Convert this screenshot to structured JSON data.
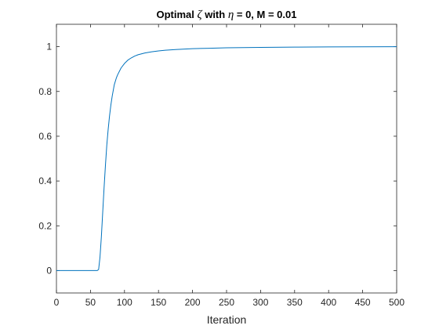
{
  "chart_data": {
    "type": "line",
    "title": {
      "prefix": "Optimal ",
      "sym1": "ζ",
      "middle": " with ",
      "sym2": "η",
      "suffix": " = 0, M = 0.01"
    },
    "xlabel": "Iteration",
    "ylabel": "",
    "xlim": [
      0,
      500
    ],
    "ylim": [
      -0.1,
      1.1
    ],
    "xticks": [
      0,
      50,
      100,
      150,
      200,
      250,
      300,
      350,
      400,
      450,
      500
    ],
    "xtick_labels": [
      "0",
      "50",
      "100",
      "150",
      "200",
      "250",
      "300",
      "350",
      "400",
      "450",
      "500"
    ],
    "yticks": [
      0,
      0.2,
      0.4,
      0.6,
      0.8,
      1
    ],
    "ytick_labels": [
      "0",
      "0.2",
      "0.4",
      "0.6",
      "0.8",
      "1"
    ],
    "grid": false,
    "colors": {
      "line": "#0072BD",
      "axis": "#262626"
    },
    "series": [
      {
        "x": [
          0,
          60,
          62,
          64,
          66,
          68,
          70,
          72,
          74,
          76,
          78,
          80,
          82,
          85,
          88,
          90,
          95,
          100,
          105,
          110,
          115,
          120,
          130,
          140,
          150,
          160,
          175,
          200,
          225,
          250,
          275,
          300,
          350,
          400,
          450,
          500
        ],
        "y": [
          0,
          0,
          0.005,
          0.06,
          0.15,
          0.26,
          0.37,
          0.47,
          0.56,
          0.63,
          0.69,
          0.74,
          0.78,
          0.83,
          0.86,
          0.875,
          0.905,
          0.925,
          0.94,
          0.95,
          0.958,
          0.964,
          0.972,
          0.977,
          0.981,
          0.984,
          0.987,
          0.991,
          0.993,
          0.995,
          0.996,
          0.997,
          0.998,
          0.999,
          0.9995,
          1.0
        ]
      }
    ]
  }
}
